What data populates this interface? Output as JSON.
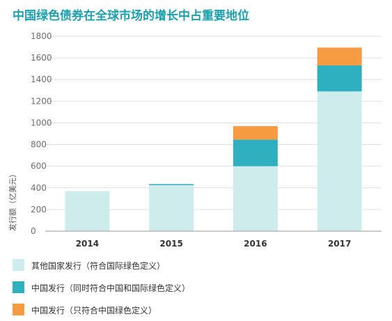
{
  "chart_data": {
    "type": "bar",
    "stacked": true,
    "title": "中国绿色债券在全球市场的增长中占重要地位",
    "ylabel": "发行额（亿美元）",
    "xlabel": "",
    "ylim": [
      0,
      1800
    ],
    "yticks": [
      0,
      200,
      400,
      600,
      800,
      1000,
      1200,
      1400,
      1600,
      1800
    ],
    "grid": true,
    "legend_position": "bottom",
    "categories": [
      "2014",
      "2015",
      "2016",
      "2017"
    ],
    "series": [
      {
        "name": "其他国家发行（符合国际绿色定义）",
        "color": "#cfecec",
        "values": [
          370,
          425,
          600,
          1290
        ]
      },
      {
        "name": "中国发行（同时符合中国和国际绿色定义）",
        "color": "#2eb0c0",
        "values": [
          0,
          10,
          245,
          240
        ]
      },
      {
        "name": "中国发行（只符合中国绿色定义）",
        "color": "#f59c42",
        "values": [
          0,
          0,
          125,
          165
        ]
      }
    ]
  }
}
